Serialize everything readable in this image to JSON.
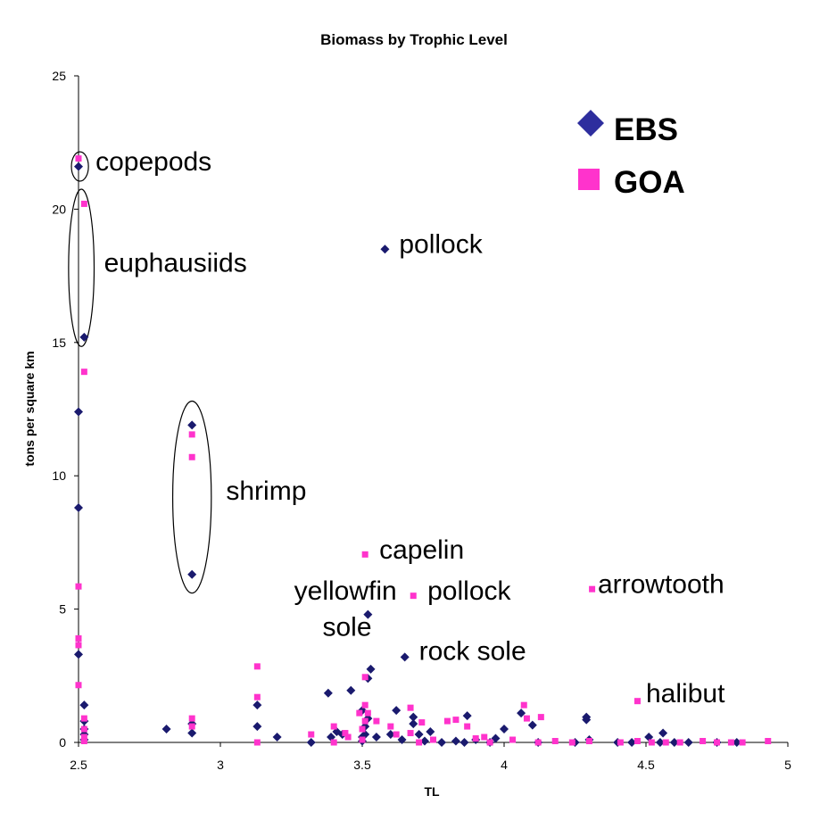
{
  "chart_data": {
    "type": "scatter",
    "title": "Biomass by Trophic Level",
    "xlabel": "TL",
    "ylabel": "tons per square km",
    "xlim": [
      2.5,
      5
    ],
    "ylim": [
      0,
      25
    ],
    "x_ticks": [
      "2.5",
      "3",
      "3.5",
      "4",
      "4.5",
      "5"
    ],
    "y_ticks": [
      "0",
      "5",
      "10",
      "15",
      "20",
      "25"
    ],
    "grid": false,
    "legend_position": "top-right",
    "series": [
      {
        "name": "EBS",
        "color": "#1a1a6e",
        "marker": "diamond",
        "points": [
          [
            2.5,
            21.6
          ],
          [
            2.5,
            12.4
          ],
          [
            2.5,
            8.8
          ],
          [
            2.5,
            3.3
          ],
          [
            2.52,
            15.2
          ],
          [
            2.52,
            1.4
          ],
          [
            2.52,
            0.8
          ],
          [
            2.52,
            0.5
          ],
          [
            2.52,
            0.3
          ],
          [
            2.52,
            0.1
          ],
          [
            2.81,
            0.5
          ],
          [
            2.9,
            11.9
          ],
          [
            2.9,
            6.3
          ],
          [
            2.9,
            0.7
          ],
          [
            2.9,
            0.35
          ],
          [
            3.13,
            1.4
          ],
          [
            3.13,
            0.6
          ],
          [
            3.2,
            0.2
          ],
          [
            3.32,
            0.0
          ],
          [
            3.38,
            1.85
          ],
          [
            3.39,
            0.2
          ],
          [
            3.41,
            0.4
          ],
          [
            3.43,
            0.3
          ],
          [
            3.46,
            1.95
          ],
          [
            3.5,
            1.2
          ],
          [
            3.5,
            0.2
          ],
          [
            3.5,
            0.05
          ],
          [
            3.51,
            0.3
          ],
          [
            3.51,
            0.6
          ],
          [
            3.52,
            4.8
          ],
          [
            3.52,
            2.4
          ],
          [
            3.52,
            0.9
          ],
          [
            3.53,
            2.75
          ],
          [
            3.55,
            0.2
          ],
          [
            3.58,
            18.5
          ],
          [
            3.6,
            0.3
          ],
          [
            3.62,
            1.2
          ],
          [
            3.64,
            0.1
          ],
          [
            3.65,
            3.2
          ],
          [
            3.68,
            0.95
          ],
          [
            3.68,
            0.7
          ],
          [
            3.7,
            0.3
          ],
          [
            3.72,
            0.05
          ],
          [
            3.74,
            0.4
          ],
          [
            3.78,
            0.0
          ],
          [
            3.83,
            0.05
          ],
          [
            3.86,
            0.0
          ],
          [
            3.87,
            1.0
          ],
          [
            3.9,
            0.1
          ],
          [
            3.95,
            0.0
          ],
          [
            3.97,
            0.15
          ],
          [
            4.0,
            0.5
          ],
          [
            4.06,
            1.1
          ],
          [
            4.1,
            0.65
          ],
          [
            4.12,
            0.0
          ],
          [
            4.25,
            0.0
          ],
          [
            4.29,
            0.85
          ],
          [
            4.29,
            0.95
          ],
          [
            4.3,
            0.1
          ],
          [
            4.4,
            0.0
          ],
          [
            4.45,
            0.0
          ],
          [
            4.51,
            0.2
          ],
          [
            4.55,
            0.0
          ],
          [
            4.56,
            0.35
          ],
          [
            4.6,
            0.0
          ],
          [
            4.65,
            0.0
          ],
          [
            4.75,
            0.0
          ],
          [
            4.82,
            0.0
          ]
        ]
      },
      {
        "name": "GOA",
        "color": "#ff33cc",
        "marker": "square",
        "points": [
          [
            2.5,
            21.9
          ],
          [
            2.5,
            5.85
          ],
          [
            2.5,
            3.9
          ],
          [
            2.5,
            3.65
          ],
          [
            2.5,
            2.15
          ],
          [
            2.52,
            20.2
          ],
          [
            2.52,
            13.9
          ],
          [
            2.52,
            0.9
          ],
          [
            2.52,
            0.5
          ],
          [
            2.52,
            0.2
          ],
          [
            2.52,
            0.05
          ],
          [
            2.9,
            11.55
          ],
          [
            2.9,
            10.7
          ],
          [
            2.9,
            0.9
          ],
          [
            2.9,
            0.6
          ],
          [
            3.13,
            2.85
          ],
          [
            3.13,
            1.7
          ],
          [
            3.13,
            0.0
          ],
          [
            3.32,
            0.3
          ],
          [
            3.4,
            0.0
          ],
          [
            3.4,
            0.6
          ],
          [
            3.44,
            0.35
          ],
          [
            3.45,
            0.2
          ],
          [
            3.49,
            1.1
          ],
          [
            3.5,
            0.5
          ],
          [
            3.5,
            0.1
          ],
          [
            3.51,
            7.05
          ],
          [
            3.51,
            2.45
          ],
          [
            3.51,
            1.4
          ],
          [
            3.51,
            0.8
          ],
          [
            3.52,
            1.1
          ],
          [
            3.55,
            0.8
          ],
          [
            3.6,
            0.6
          ],
          [
            3.62,
            0.3
          ],
          [
            3.67,
            1.3
          ],
          [
            3.67,
            0.35
          ],
          [
            3.68,
            5.5
          ],
          [
            3.7,
            0.0
          ],
          [
            3.71,
            0.75
          ],
          [
            3.75,
            0.1
          ],
          [
            3.8,
            0.8
          ],
          [
            3.83,
            0.85
          ],
          [
            3.87,
            0.6
          ],
          [
            3.9,
            0.15
          ],
          [
            3.93,
            0.2
          ],
          [
            3.95,
            0.0
          ],
          [
            4.03,
            0.1
          ],
          [
            4.07,
            1.4
          ],
          [
            4.08,
            0.9
          ],
          [
            4.13,
            0.95
          ],
          [
            4.12,
            0.0
          ],
          [
            4.18,
            0.05
          ],
          [
            4.24,
            0.0
          ],
          [
            4.3,
            0.05
          ],
          [
            4.31,
            5.75
          ],
          [
            4.41,
            0.0
          ],
          [
            4.47,
            1.55
          ],
          [
            4.47,
            0.05
          ],
          [
            4.52,
            0.0
          ],
          [
            4.57,
            0.0
          ],
          [
            4.62,
            0.0
          ],
          [
            4.7,
            0.05
          ],
          [
            4.75,
            0.0
          ],
          [
            4.8,
            0.0
          ],
          [
            4.84,
            0.0
          ],
          [
            4.93,
            0.05
          ]
        ]
      }
    ],
    "annotations": [
      {
        "text": "copepods",
        "x": 2.56,
        "y": 21.45
      },
      {
        "text": "euphausiids",
        "x": 2.59,
        "y": 17.65
      },
      {
        "text": "pollock",
        "x": 3.63,
        "y": 18.35
      },
      {
        "text": "shrimp",
        "x": 3.02,
        "y": 9.1
      },
      {
        "text": "capelin",
        "x": 3.56,
        "y": 6.9
      },
      {
        "text": "yellowfin",
        "x": 3.26,
        "y": 5.35
      },
      {
        "text": "sole",
        "x": 3.36,
        "y": 4.0
      },
      {
        "text": "pollock",
        "x": 3.73,
        "y": 5.35
      },
      {
        "text": "rock sole",
        "x": 3.7,
        "y": 3.1
      },
      {
        "text": "arrowtooth",
        "x": 4.33,
        "y": 5.6
      },
      {
        "text": "halibut",
        "x": 4.5,
        "y": 1.5
      }
    ],
    "ellipses": [
      {
        "label": "copepods",
        "cx": 2.505,
        "cy": 21.6,
        "rx": 0.03,
        "ry": 0.55
      },
      {
        "label": "euphausiids",
        "cx": 2.51,
        "cy": 17.8,
        "rx": 0.045,
        "ry": 2.95
      },
      {
        "label": "shrimp",
        "cx": 2.9,
        "cy": 9.2,
        "rx": 0.068,
        "ry": 3.6
      }
    ]
  }
}
